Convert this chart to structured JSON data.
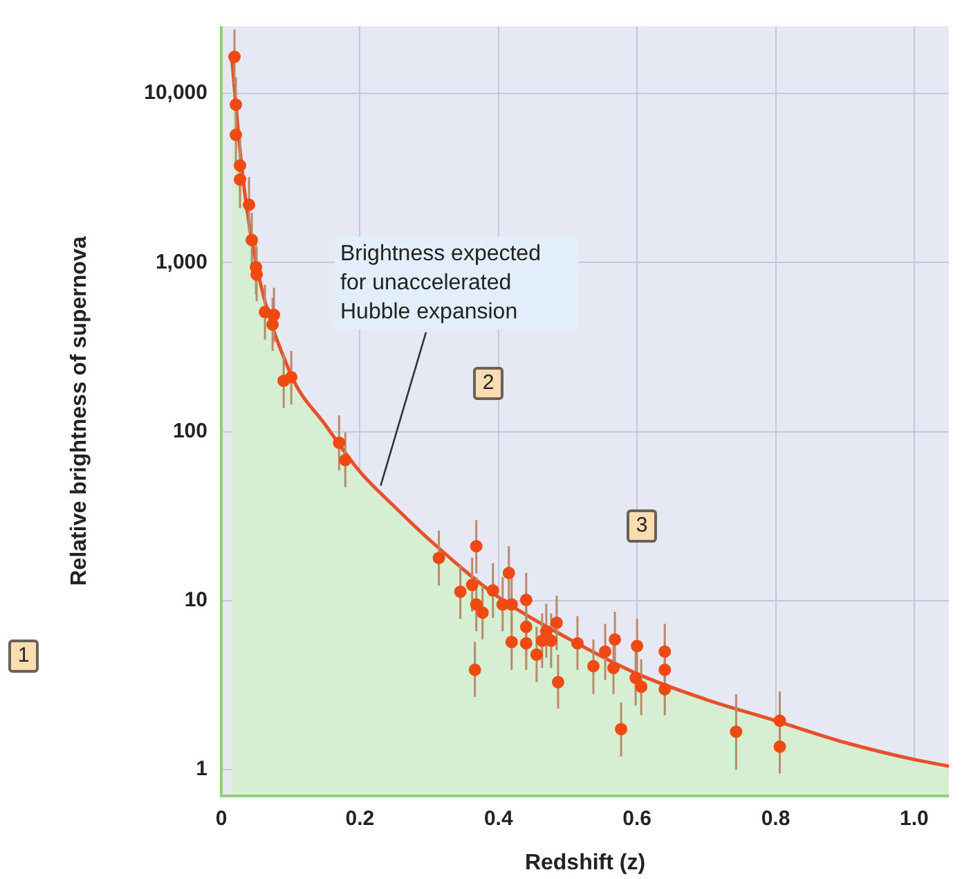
{
  "chart_data": {
    "type": "scatter",
    "xlabel": "Redshift (z)",
    "ylabel": "Relative brightness of supernova",
    "xlim": [
      0,
      1.05
    ],
    "xticks": [
      0,
      {
        "value": 0.2,
        "label": "0.2"
      },
      {
        "value": 0.4,
        "label": "0.4"
      },
      {
        "value": 0.6,
        "label": "0.6"
      },
      {
        "value": 0.8,
        "label": "0.8"
      },
      {
        "value": 1,
        "label": "1.0"
      }
    ],
    "ylim": [
      0.73,
      25000
    ],
    "yticks": [
      1,
      10,
      100,
      {
        "value": 1000,
        "label": "1,000"
      },
      {
        "value": 10000,
        "label": "10,000"
      }
    ],
    "log": "y",
    "grid": true,
    "annotations": [
      {
        "text": "Brightness expected for unaccelerated Hubble expansion",
        "x": 0.23,
        "y": 48
      },
      "1",
      "2",
      "3"
    ],
    "series": [
      {
        "type": "area",
        "marker": "none",
        "color": "#e8502a",
        "x": [
          0.015,
          0.03,
          0.05,
          0.1,
          0.15,
          0.2,
          0.25,
          0.3,
          0.4,
          0.5,
          0.6,
          0.7,
          0.8,
          0.9,
          1.0,
          1.05
        ],
        "values": [
          16500,
          3500,
          1000,
          220,
          110,
          58,
          36,
          23,
          10.5,
          6,
          3.7,
          2.6,
          1.95,
          1.45,
          1.15,
          1.05
        ]
      },
      {
        "marker": "circle",
        "color": "#f04a12",
        "x": [
          0.019,
          0.021,
          0.021,
          0.027,
          0.027,
          0.04,
          0.044,
          0.05,
          0.051,
          0.063,
          0.076,
          0.074,
          0.09,
          0.101,
          0.17,
          0.179,
          0.314,
          0.368,
          0.345,
          0.362,
          0.368,
          0.377,
          0.366,
          0.392,
          0.415,
          0.406,
          0.419,
          0.44,
          0.419,
          0.44,
          0.44,
          0.469,
          0.463,
          0.476,
          0.455,
          0.484,
          0.486,
          0.514,
          0.537,
          0.554,
          0.568,
          0.566,
          0.577,
          0.6,
          0.598,
          0.606,
          0.64,
          0.64,
          0.64,
          0.743,
          0.806,
          0.806
        ],
        "values": [
          16500,
          8600,
          5700,
          3750,
          3100,
          2200,
          1360,
          940,
          850,
          510,
          490,
          430,
          200,
          210,
          86,
          68,
          17.9,
          21,
          11.3,
          12.4,
          9.5,
          8.5,
          3.9,
          11.5,
          14.6,
          9.5,
          9.5,
          10.1,
          5.7,
          7.0,
          5.6,
          6.6,
          5.8,
          5.8,
          4.8,
          7.4,
          3.3,
          5.6,
          4.1,
          5.0,
          5.9,
          4.0,
          1.74,
          5.4,
          3.5,
          3.1,
          5.0,
          3.9,
          3.0,
          1.68,
          1.95,
          1.37
        ],
        "errors": [
          [
            11400,
            23900
          ],
          [
            5900,
            12500
          ],
          [
            3900,
            8300
          ],
          [
            2600,
            5400
          ],
          [
            2100,
            4500
          ],
          [
            1500,
            3200
          ],
          [
            940,
            1970
          ],
          [
            650,
            1360
          ],
          [
            590,
            1230
          ],
          [
            350,
            740
          ],
          [
            340,
            710
          ],
          [
            300,
            620
          ],
          [
            138,
            290
          ],
          [
            145,
            300
          ],
          [
            59,
            125
          ],
          [
            47,
            99
          ],
          [
            12.3,
            26
          ],
          [
            14.5,
            30
          ],
          [
            7.8,
            16.4
          ],
          [
            8.6,
            18
          ],
          [
            6.6,
            13.8
          ],
          [
            5.9,
            12.3
          ],
          [
            2.7,
            5.7
          ],
          [
            7.9,
            16.7
          ],
          [
            10.1,
            21
          ],
          [
            6.6,
            13.8
          ],
          [
            6.6,
            13.8
          ],
          [
            7.0,
            14.6
          ],
          [
            3.9,
            8.3
          ],
          [
            4.8,
            10.2
          ],
          [
            3.9,
            8.1
          ],
          [
            4.6,
            9.6
          ],
          [
            4.0,
            8.4
          ],
          [
            4.0,
            8.4
          ],
          [
            3.3,
            7.0
          ],
          [
            5.1,
            10.7
          ],
          [
            2.3,
            4.8
          ],
          [
            3.9,
            8.1
          ],
          [
            2.8,
            5.9
          ],
          [
            3.4,
            7.3
          ],
          [
            4.1,
            8.6
          ],
          [
            2.8,
            5.8
          ],
          [
            1.2,
            2.5
          ],
          [
            3.7,
            7.8
          ],
          [
            2.4,
            5.1
          ],
          [
            2.1,
            4.5
          ],
          [
            3.4,
            7.3
          ],
          [
            2.7,
            5.7
          ],
          [
            2.1,
            4.4
          ],
          [
            1.0,
            2.8
          ],
          [
            1.3,
            2.9
          ],
          [
            0.95,
            2.0
          ]
        ]
      }
    ]
  }
}
